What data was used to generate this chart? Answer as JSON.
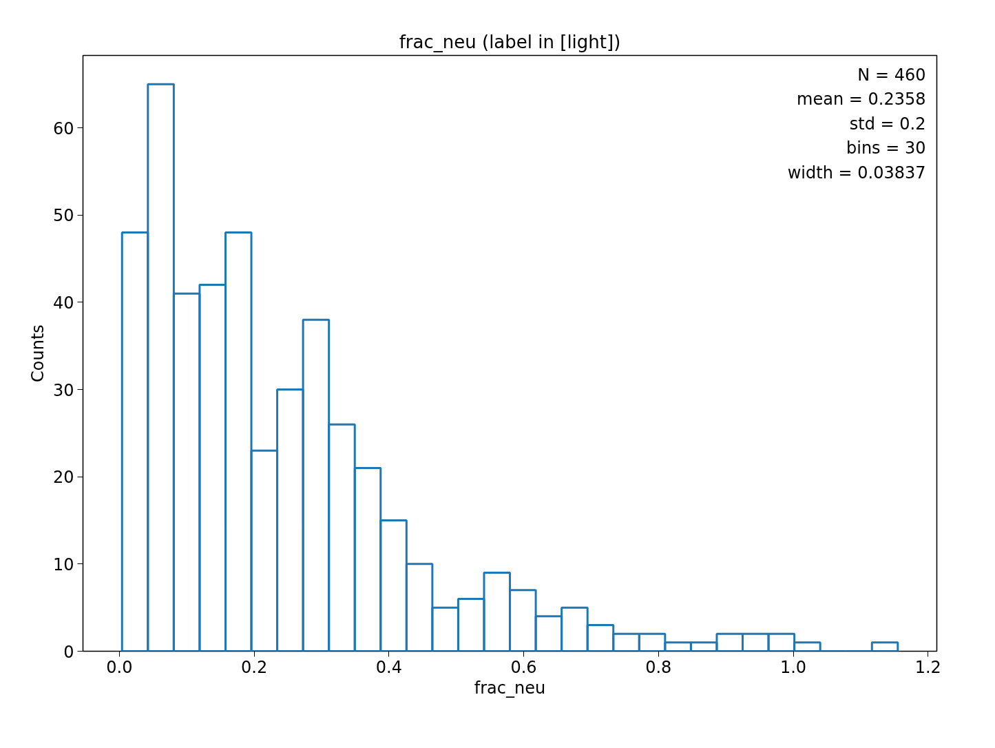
{
  "chart_data": {
    "type": "histogram",
    "title": "frac_neu (label in [light])",
    "xlabel": "frac_neu",
    "ylabel": "Counts",
    "bins": [
      0.004,
      0.04237,
      0.08074,
      0.11911,
      0.15748,
      0.19585,
      0.23422,
      0.27259,
      0.31096,
      0.34933,
      0.3877,
      0.42607,
      0.46444,
      0.50281,
      0.54118,
      0.57955,
      0.61792,
      0.65629,
      0.69466,
      0.73303,
      0.7714,
      0.80977,
      0.84814,
      0.88651,
      0.92488,
      0.96325,
      1.00162,
      1.03999,
      1.07836,
      1.11673,
      1.1551
    ],
    "values": [
      48,
      65,
      41,
      42,
      48,
      23,
      30,
      38,
      26,
      21,
      15,
      10,
      5,
      6,
      9,
      7,
      4,
      5,
      3,
      2,
      2,
      1,
      1,
      2,
      2,
      2,
      1,
      0,
      0,
      1
    ],
    "color": "#1f77b4",
    "xlim": [
      -0.054,
      1.213
    ],
    "ylim": [
      0,
      68.3
    ],
    "xticks": [
      {
        "value": 0,
        "label": "0.0"
      },
      0.2,
      0.4,
      0.6,
      0.8,
      {
        "value": 1,
        "label": "1.0"
      },
      1.2
    ],
    "yticks": [
      0,
      10,
      20,
      30,
      40,
      50,
      60
    ],
    "annotations": [
      "N = 460",
      "mean = 0.2358",
      "std = 0.2",
      "bins = 30",
      "width = 0.03837"
    ],
    "grid": false
  }
}
